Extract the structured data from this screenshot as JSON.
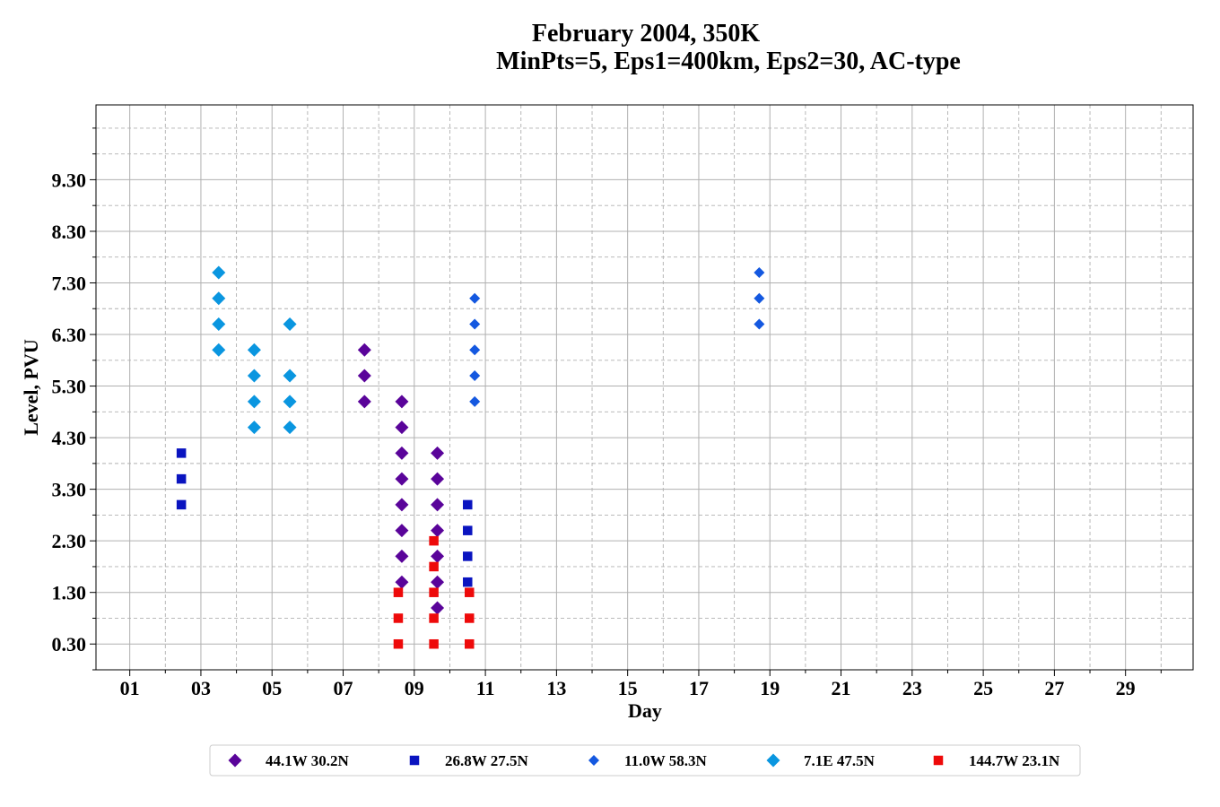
{
  "chart_data": {
    "type": "scatter",
    "title_line1": "February 2004, 350K",
    "title_line2": "MinPts=5, Eps1=400km, Eps2=30, AC-type",
    "xlabel": "Day",
    "ylabel": "Level, PVU",
    "xlim": [
      0.05,
      30.9
    ],
    "ylim": [
      -0.2,
      10.75
    ],
    "x_major_ticks": [
      1,
      3,
      5,
      7,
      9,
      11,
      13,
      15,
      17,
      19,
      21,
      23,
      25,
      27,
      29
    ],
    "x_tick_labels": [
      "01",
      "03",
      "05",
      "07",
      "09",
      "11",
      "13",
      "15",
      "17",
      "19",
      "21",
      "23",
      "25",
      "27",
      "29"
    ],
    "x_minor_ticks": [
      2,
      4,
      6,
      8,
      10,
      12,
      14,
      16,
      18,
      20,
      22,
      24,
      26,
      28,
      30
    ],
    "y_major_ticks": [
      0.3,
      1.3,
      2.3,
      3.3,
      4.3,
      5.3,
      6.3,
      7.3,
      8.3,
      9.3
    ],
    "y_tick_labels": [
      "0.30",
      "1.30",
      "2.30",
      "3.30",
      "4.30",
      "5.30",
      "6.30",
      "7.30",
      "8.30",
      "9.30"
    ],
    "y_minor_ticks": [
      -0.2,
      0.8,
      1.8,
      2.8,
      3.8,
      4.8,
      5.8,
      6.8,
      7.8,
      8.8,
      9.8,
      10.3
    ],
    "grid": true,
    "legend_position": "bottom-center",
    "series": [
      {
        "name": "44.1W 30.2N",
        "color": "#5a049a",
        "marker": "diamond",
        "points": [
          [
            7.6,
            5.0
          ],
          [
            7.6,
            5.5
          ],
          [
            7.6,
            6.0
          ],
          [
            8.65,
            1.5
          ],
          [
            8.65,
            2.0
          ],
          [
            8.65,
            2.5
          ],
          [
            8.65,
            3.0
          ],
          [
            8.65,
            3.5
          ],
          [
            8.65,
            4.0
          ],
          [
            8.65,
            4.5
          ],
          [
            8.65,
            5.0
          ],
          [
            9.65,
            1.0
          ],
          [
            9.65,
            1.5
          ],
          [
            9.65,
            2.0
          ],
          [
            9.65,
            2.5
          ],
          [
            9.65,
            3.0
          ],
          [
            9.65,
            3.5
          ],
          [
            9.65,
            4.0
          ]
        ]
      },
      {
        "name": "26.8W 27.5N",
        "color": "#0a14c0",
        "marker": "square",
        "points": [
          [
            2.45,
            3.0
          ],
          [
            2.45,
            3.5
          ],
          [
            2.45,
            4.0
          ],
          [
            10.5,
            1.5
          ],
          [
            10.5,
            2.0
          ],
          [
            10.5,
            2.5
          ],
          [
            10.5,
            3.0
          ]
        ]
      },
      {
        "name": "11.0W 58.3N",
        "color": "#1458e0",
        "marker": "diamond-small",
        "points": [
          [
            10.7,
            5.0
          ],
          [
            10.7,
            5.5
          ],
          [
            10.7,
            6.0
          ],
          [
            10.7,
            6.5
          ],
          [
            10.7,
            7.0
          ],
          [
            18.7,
            6.5
          ],
          [
            18.7,
            7.0
          ],
          [
            18.7,
            7.5
          ]
        ]
      },
      {
        "name": "7.1E 47.5N",
        "color": "#0a96e0",
        "marker": "diamond",
        "points": [
          [
            3.5,
            6.0
          ],
          [
            3.5,
            6.5
          ],
          [
            3.5,
            7.0
          ],
          [
            3.5,
            7.5
          ],
          [
            4.5,
            4.5
          ],
          [
            4.5,
            5.0
          ],
          [
            4.5,
            5.5
          ],
          [
            4.5,
            6.0
          ],
          [
            5.5,
            4.5
          ],
          [
            5.5,
            5.0
          ],
          [
            5.5,
            5.5
          ],
          [
            5.5,
            6.5
          ]
        ]
      },
      {
        "name": "144.7W 23.1N",
        "color": "#ee0a0a",
        "marker": "square",
        "points": [
          [
            8.55,
            0.3
          ],
          [
            8.55,
            0.8
          ],
          [
            8.55,
            1.3
          ],
          [
            9.55,
            0.3
          ],
          [
            9.55,
            0.8
          ],
          [
            9.55,
            1.3
          ],
          [
            9.55,
            1.8
          ],
          [
            9.55,
            2.3
          ],
          [
            10.55,
            0.3
          ],
          [
            10.55,
            0.8
          ],
          [
            10.55,
            1.3
          ]
        ]
      }
    ]
  }
}
